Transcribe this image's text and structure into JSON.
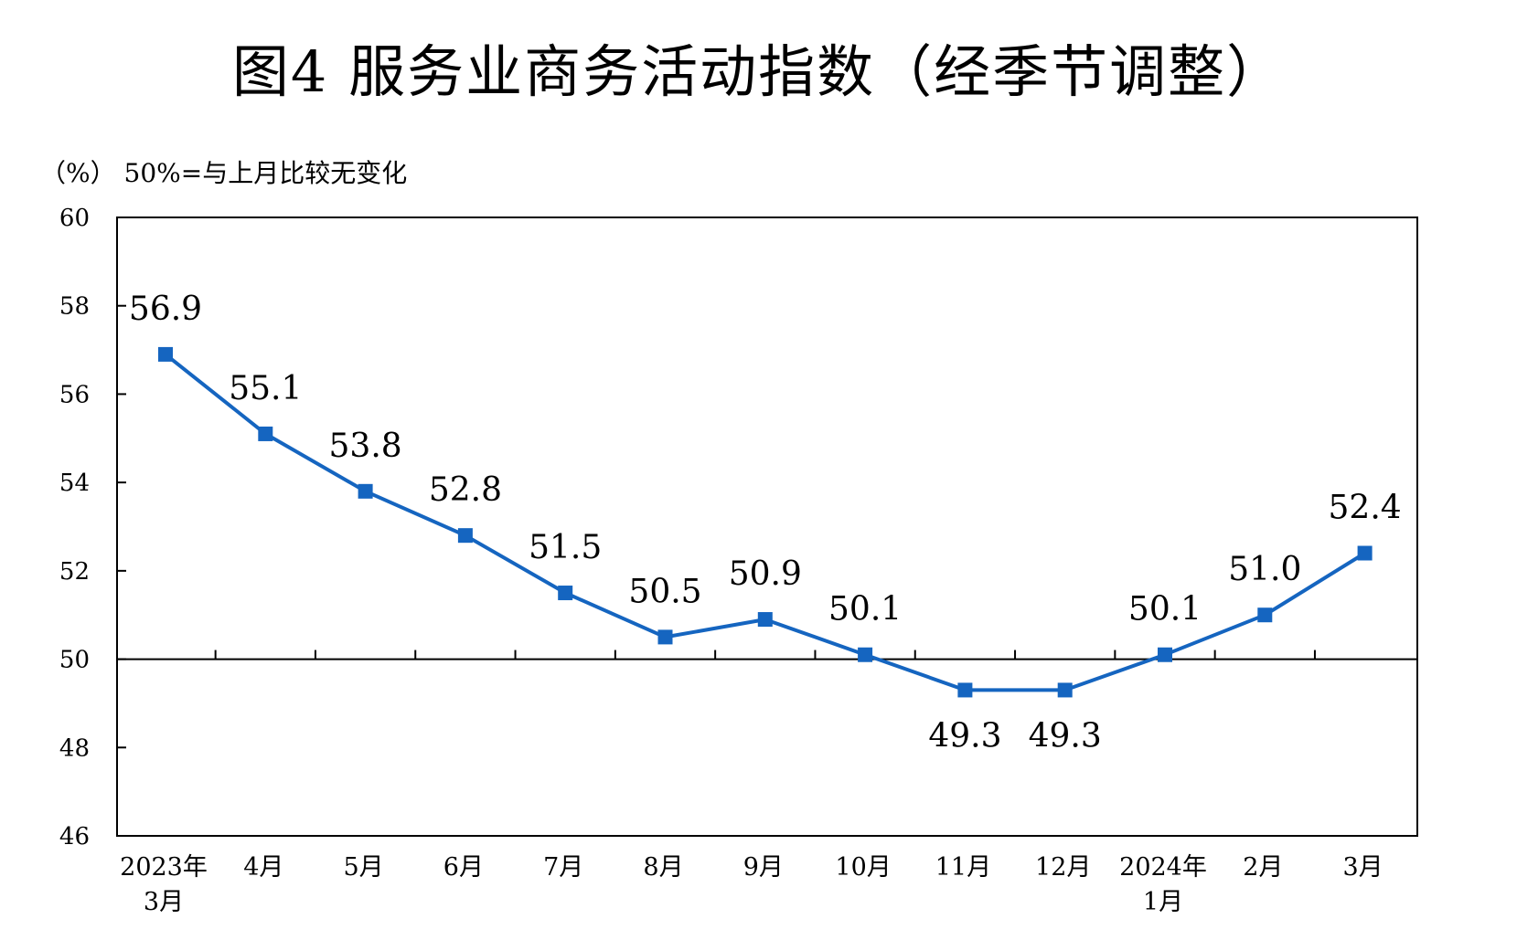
{
  "title": "图4  服务业商务活动指数（经季节调整）",
  "unit_note": "（%）  50%=与上月比较无变化",
  "colors": {
    "series": "#1565C0",
    "axis": "#000000"
  },
  "chart_data": {
    "type": "line",
    "title": "图4  服务业商务活动指数（经季节调整）",
    "ylabel": "（%）  50%=与上月比较无变化",
    "ylim": [
      46,
      60
    ],
    "yticks": [
      "46",
      "48",
      "50",
      "52",
      "54",
      "56",
      "58",
      "60"
    ],
    "reference_line": 50,
    "grid": false,
    "categories": [
      [
        "2023年",
        "3月"
      ],
      [
        "4月"
      ],
      [
        "5月"
      ],
      [
        "6月"
      ],
      [
        "7月"
      ],
      [
        "8月"
      ],
      [
        "9月"
      ],
      [
        "10月"
      ],
      [
        "11月"
      ],
      [
        "12月"
      ],
      [
        "2024年",
        "1月"
      ],
      [
        "2月"
      ],
      [
        "3月"
      ]
    ],
    "values": [
      56.9,
      55.1,
      53.8,
      52.8,
      51.5,
      50.5,
      50.9,
      50.1,
      49.3,
      49.3,
      50.1,
      51.0,
      52.4
    ],
    "data_labels": [
      "56.9",
      "55.1",
      "53.8",
      "52.8",
      "51.5",
      "50.5",
      "50.9",
      "50.1",
      "49.3",
      "49.3",
      "50.1",
      "51.0",
      "52.4"
    ],
    "data_label_position": [
      "above",
      "above",
      "above",
      "above",
      "above",
      "above",
      "above",
      "above",
      "below",
      "below",
      "above",
      "above",
      "above"
    ]
  }
}
